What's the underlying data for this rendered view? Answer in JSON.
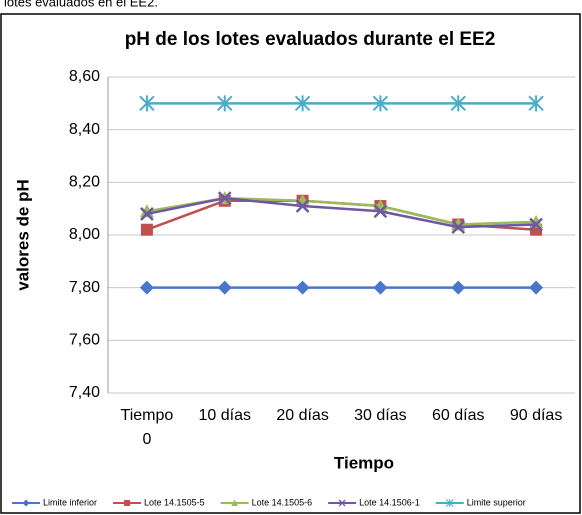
{
  "caption": "lotes evaluados en el EE2.",
  "chart_data": {
    "type": "line",
    "title": "pH de los lotes evaluados durante el EE2",
    "x_label": "Tiempo",
    "y_label": "valores de pH",
    "categories": [
      "Tiempo 0",
      "10 días",
      "20 días",
      "30 días",
      "60 días",
      "90 días"
    ],
    "series": [
      {
        "name": "Limite inferior",
        "color": "#4a76c8",
        "marker": "diamond",
        "values": [
          7.8,
          7.8,
          7.8,
          7.8,
          7.8,
          7.8
        ]
      },
      {
        "name": "Lote 14.1505-5",
        "color": "#c0504d",
        "marker": "square",
        "values": [
          8.02,
          8.13,
          8.13,
          8.11,
          8.04,
          8.02
        ]
      },
      {
        "name": "Lote 14.1505-6",
        "color": "#9bbb59",
        "marker": "triangle",
        "values": [
          8.09,
          8.14,
          8.13,
          8.11,
          8.04,
          8.05
        ]
      },
      {
        "name": "Lote 14.1506-1",
        "color": "#7057a3",
        "marker": "x",
        "values": [
          8.08,
          8.14,
          8.11,
          8.09,
          8.03,
          8.04
        ]
      },
      {
        "name": "Limite superior",
        "color": "#4bacc6",
        "marker": "star",
        "values": [
          8.5,
          8.5,
          8.5,
          8.5,
          8.5,
          8.5
        ]
      }
    ],
    "ylim": [
      7.4,
      8.6
    ],
    "yticks": [
      {
        "value": 7.4,
        "label": "7,40"
      },
      {
        "value": 7.6,
        "label": "7,60"
      },
      {
        "value": 7.8,
        "label": "7,80"
      },
      {
        "value": 8.0,
        "label": "8,00"
      },
      {
        "value": 8.2,
        "label": "8,20"
      },
      {
        "value": 8.4,
        "label": "8,40"
      },
      {
        "value": 8.6,
        "label": "8,60"
      }
    ],
    "grid": true,
    "legend": "bottom"
  }
}
